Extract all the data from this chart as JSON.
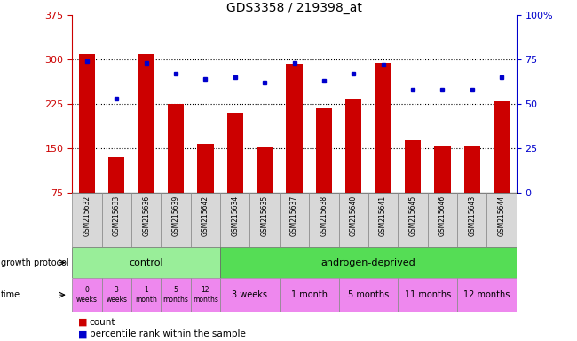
{
  "title": "GDS3358 / 219398_at",
  "samples": [
    "GSM215632",
    "GSM215633",
    "GSM215636",
    "GSM215639",
    "GSM215642",
    "GSM215634",
    "GSM215635",
    "GSM215637",
    "GSM215638",
    "GSM215640",
    "GSM215641",
    "GSM215645",
    "GSM215646",
    "GSM215643",
    "GSM215644"
  ],
  "counts": [
    310,
    135,
    310,
    225,
    158,
    210,
    152,
    293,
    218,
    233,
    295,
    163,
    155,
    155,
    230
  ],
  "percentiles": [
    74,
    53,
    73,
    67,
    64,
    65,
    62,
    73,
    63,
    67,
    72,
    58,
    58,
    58,
    65
  ],
  "ylim_left": [
    75,
    375
  ],
  "ylim_right": [
    0,
    100
  ],
  "yticks_left": [
    75,
    150,
    225,
    300,
    375
  ],
  "ytick_labels_left": [
    "75",
    "150",
    "225",
    "300",
    "375"
  ],
  "yticks_right": [
    0,
    25,
    50,
    75,
    100
  ],
  "ytick_labels_right": [
    "0",
    "25",
    "50",
    "75",
    "100%"
  ],
  "bar_color": "#cc0000",
  "dot_color": "#0000cc",
  "bar_width": 0.55,
  "title_fontsize": 10,
  "control_color": "#99ee99",
  "androgen_color": "#55dd55",
  "time_color": "#ee88ee",
  "control_label": "control",
  "androgen_label": "androgen-deprived",
  "protocol_label": "growth protocol",
  "time_label": "time",
  "ctrl_time_labels": [
    "0\nweeks",
    "3\nweeks",
    "1\nmonth",
    "5\nmonths",
    "12\nmonths"
  ],
  "and_time_labels": [
    "3 weeks",
    "1 month",
    "5 months",
    "11 months",
    "12 months"
  ],
  "and_groups_start": [
    5,
    7,
    9,
    11,
    13
  ],
  "and_groups_end": [
    6,
    8,
    10,
    12,
    14
  ],
  "legend_count_label": "count",
  "legend_pct_label": "percentile rank within the sample"
}
